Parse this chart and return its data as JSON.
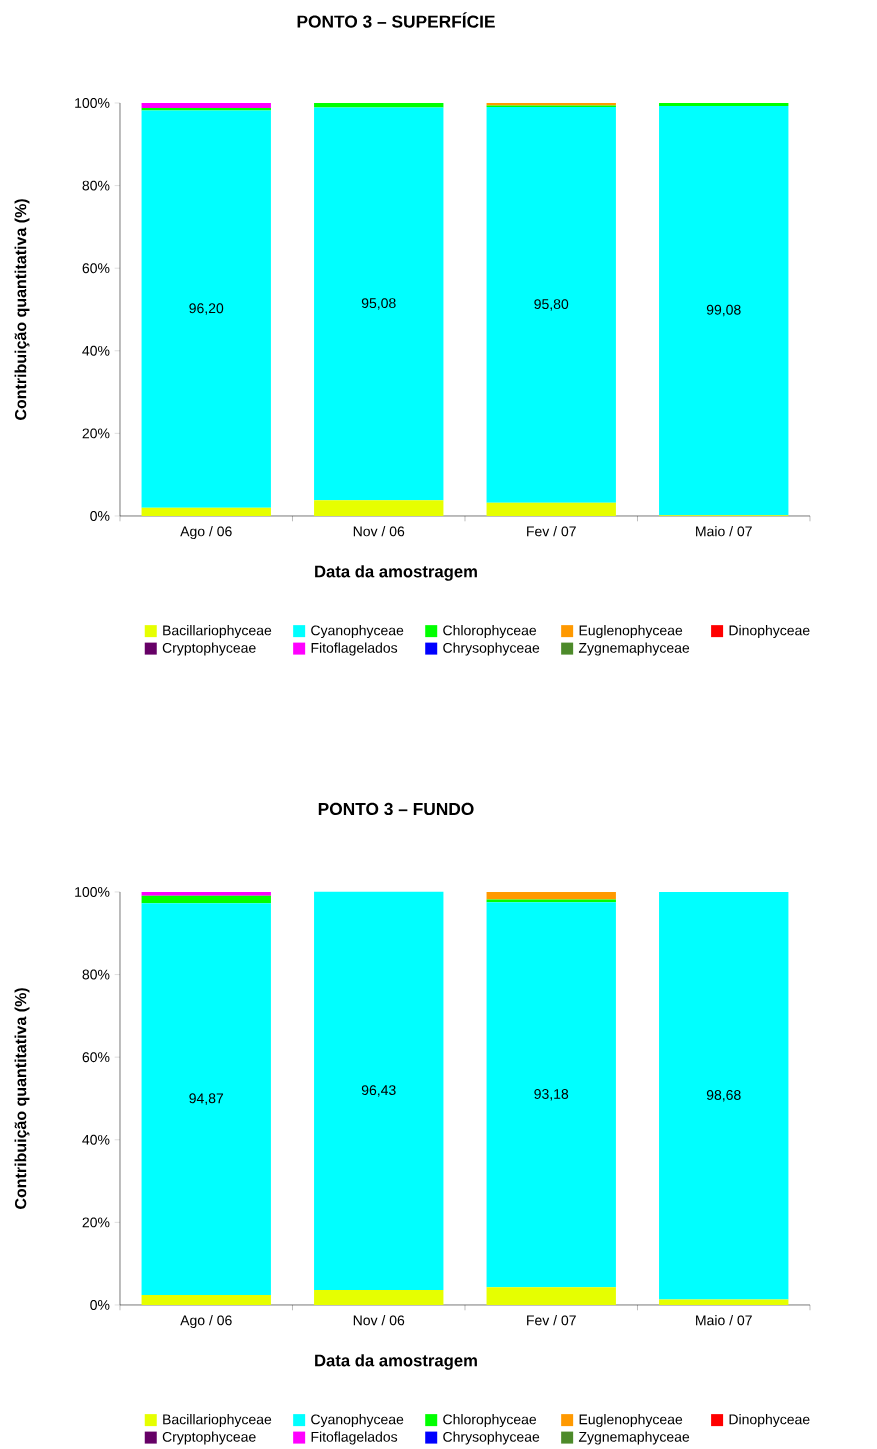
{
  "chart_data": [
    {
      "type": "bar",
      "stacked": true,
      "title": "PONTO 3 – SUPERFÍCIE",
      "xlabel": "Data da amostragem",
      "ylabel": "Contribuição quantitativa (%)",
      "categories": [
        "Ago / 06",
        "Nov / 06",
        "Fev / 07",
        "Maio / 07"
      ],
      "ylim": [
        0,
        100
      ],
      "yticks": [
        {
          "value": 0,
          "label": "0%"
        },
        {
          "value": 20,
          "label": "20%"
        },
        {
          "value": 40,
          "label": "40%"
        },
        {
          "value": 60,
          "label": "60%"
        },
        {
          "value": 80,
          "label": "80%"
        },
        {
          "value": 100,
          "label": "100%"
        }
      ],
      "legend": "bottom",
      "series": [
        {
          "name": "Bacillariophyceae",
          "color": "#e6ff00",
          "values": [
            2.0,
            3.8,
            3.2,
            0.2
          ]
        },
        {
          "name": "Cyanophyceae",
          "color": "#00ffff",
          "values": [
            96.2,
            95.08,
            95.8,
            99.08
          ],
          "value_labels": [
            "96,20",
            "95,08",
            "95,80",
            "99,08"
          ]
        },
        {
          "name": "Chlorophyceae",
          "color": "#00ff00",
          "values": [
            0.6,
            1.1,
            0.4,
            0.7
          ]
        },
        {
          "name": "Euglenophyceae",
          "color": "#ff9900",
          "values": [
            0,
            0,
            0.6,
            0
          ]
        },
        {
          "name": "Dinophyceae",
          "color": "#ff0000",
          "values": [
            0,
            0,
            0,
            0
          ]
        },
        {
          "name": "Cryptophyceae",
          "color": "#660066",
          "values": [
            0,
            0,
            0,
            0
          ]
        },
        {
          "name": "Fitoflagelados",
          "color": "#ff00ff",
          "values": [
            1.2,
            0,
            0,
            0
          ]
        },
        {
          "name": "Chrysophyceae",
          "color": "#0000ff",
          "values": [
            0,
            0,
            0,
            0
          ]
        },
        {
          "name": "Zygnemaphyceae",
          "color": "#4d8a2a",
          "values": [
            0,
            0,
            0,
            0
          ]
        }
      ]
    },
    {
      "type": "bar",
      "stacked": true,
      "title": "PONTO 3 – FUNDO",
      "xlabel": "Data da amostragem",
      "ylabel": "Contribuição quantitativa (%)",
      "categories": [
        "Ago / 06",
        "Nov / 06",
        "Fev / 07",
        "Maio / 07"
      ],
      "ylim": [
        0,
        100
      ],
      "yticks": [
        {
          "value": 0,
          "label": "0%"
        },
        {
          "value": 20,
          "label": "20%"
        },
        {
          "value": 40,
          "label": "40%"
        },
        {
          "value": 60,
          "label": "60%"
        },
        {
          "value": 80,
          "label": "80%"
        },
        {
          "value": 100,
          "label": "100%"
        }
      ],
      "legend": "bottom",
      "series": [
        {
          "name": "Bacillariophyceae",
          "color": "#e6ff00",
          "values": [
            2.4,
            3.6,
            4.3,
            1.3
          ]
        },
        {
          "name": "Cyanophyceae",
          "color": "#00ffff",
          "values": [
            94.87,
            96.43,
            93.18,
            98.68
          ],
          "value_labels": [
            "94,87",
            "96,43",
            "93,18",
            "98,68"
          ]
        },
        {
          "name": "Chlorophyceae",
          "color": "#00ff00",
          "values": [
            1.8,
            0,
            0.7,
            0
          ]
        },
        {
          "name": "Euglenophyceae",
          "color": "#ff9900",
          "values": [
            0,
            0,
            1.8,
            0
          ]
        },
        {
          "name": "Dinophyceae",
          "color": "#ff0000",
          "values": [
            0,
            0,
            0,
            0
          ]
        },
        {
          "name": "Cryptophyceae",
          "color": "#660066",
          "values": [
            0,
            0,
            0,
            0
          ]
        },
        {
          "name": "Fitoflagelados",
          "color": "#ff00ff",
          "values": [
            0.9,
            0,
            0,
            0
          ]
        },
        {
          "name": "Chrysophyceae",
          "color": "#0000ff",
          "values": [
            0,
            0,
            0,
            0
          ]
        },
        {
          "name": "Zygnemaphyceae",
          "color": "#4d8a2a",
          "values": [
            0,
            0,
            0,
            0
          ]
        }
      ]
    }
  ]
}
